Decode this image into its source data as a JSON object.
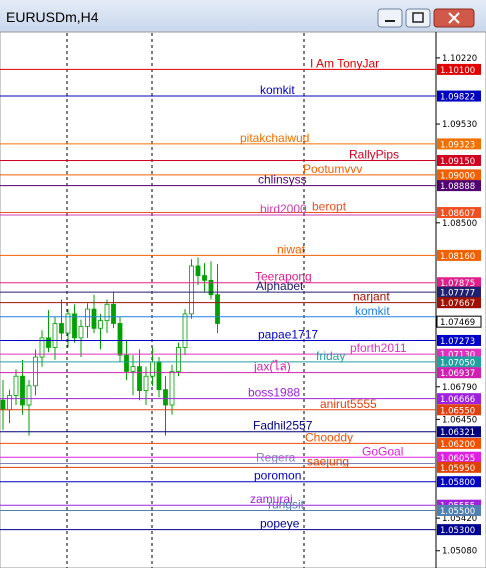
{
  "chart_data": {
    "type": "candlestick",
    "title": "EURUSDm,H4",
    "ylim": [
      1.049,
      1.1049
    ],
    "yticks": [
      {
        "value": 1.1022,
        "label": "1.10220"
      },
      {
        "value": 1.0953,
        "label": "1.09530"
      },
      {
        "value": 1.085,
        "label": "1.08500"
      },
      {
        "value": 1.0679,
        "label": "1.06790"
      },
      {
        "value": 1.0645,
        "label": "1.06450"
      },
      {
        "value": 1.0542,
        "label": "1.05420"
      },
      {
        "value": 1.0508,
        "label": "1.05080"
      }
    ],
    "candle_colors": {
      "up": "#ffffff",
      "down": "#00a000",
      "edge": "#00a000"
    },
    "open": [
      1.0665,
      1.0655,
      1.067,
      1.069,
      1.066,
      1.068,
      1.071,
      1.073,
      1.072,
      1.0745,
      1.0735,
      1.0755,
      1.073,
      1.0742,
      1.076,
      1.074,
      1.0748,
      1.0765,
      1.0745,
      1.0712,
      1.0695,
      1.07,
      1.0675,
      1.069,
      1.0705,
      1.0676,
      1.066,
      1.0695,
      1.072,
      1.0755,
      1.0805,
      1.0795,
      1.079,
      1.0775
    ],
    "high": [
      1.0686,
      1.0676,
      1.0697,
      1.0707,
      1.0686,
      1.0718,
      1.0738,
      1.0759,
      1.0752,
      1.077,
      1.076,
      1.0765,
      1.0749,
      1.0766,
      1.0775,
      1.0755,
      1.077,
      1.0778,
      1.0752,
      1.0728,
      1.0712,
      1.0718,
      1.07,
      1.072,
      1.071,
      1.069,
      1.0702,
      1.0725,
      1.076,
      1.0812,
      1.0814,
      1.0808,
      1.081,
      1.0807
    ],
    "low": [
      1.0634,
      1.0641,
      1.066,
      1.065,
      1.0628,
      1.067,
      1.07,
      1.0715,
      1.0707,
      1.0728,
      1.072,
      1.0725,
      1.071,
      1.073,
      1.0735,
      1.0718,
      1.0735,
      1.074,
      1.0705,
      1.0686,
      1.067,
      1.0665,
      1.066,
      1.068,
      1.0668,
      1.0628,
      1.065,
      1.069,
      1.0712,
      1.075,
      1.0785,
      1.0778,
      1.077,
      1.0735
    ],
    "close": [
      1.0655,
      1.067,
      1.069,
      1.066,
      1.068,
      1.071,
      1.073,
      1.072,
      1.0745,
      1.0735,
      1.0755,
      1.073,
      1.0742,
      1.076,
      1.074,
      1.0748,
      1.0765,
      1.0745,
      1.0712,
      1.0695,
      1.07,
      1.0675,
      1.069,
      1.0705,
      1.0676,
      1.066,
      1.0695,
      1.072,
      1.0755,
      1.0805,
      1.0795,
      1.079,
      1.0775,
      1.0745
    ],
    "bid": {
      "value": 1.07469,
      "label": "1.07469"
    },
    "levels": [
      {
        "name": "I Am TonyJar",
        "value": 1.101,
        "label": "1.10100",
        "color": "#e00000"
      },
      {
        "name": "komkit",
        "value": 1.09822,
        "label": "1.09822",
        "color": "#0000c0"
      },
      {
        "name": "pitakchaiwud",
        "value": 1.09323,
        "label": "1.09323",
        "color": "#f07000"
      },
      {
        "name": "RallyPips",
        "value": 1.0915,
        "label": "1.09150",
        "color": "#d00020"
      },
      {
        "name": "Pootumvvv",
        "value": 1.09,
        "label": "1.09000",
        "color": "#f06000"
      },
      {
        "name": "chlinsyss",
        "value": 1.08888,
        "label": "1.08888",
        "color": "#500070"
      },
      {
        "name": "beropt",
        "value": 1.08607,
        "label": "1.08607",
        "color": "#f05020"
      },
      {
        "name": "bird2000",
        "value": 1.08581,
        "color": "#d040b0"
      },
      {
        "name": "niwat",
        "value": 1.0816,
        "label": "1.08160",
        "color": "#f06000"
      },
      {
        "name": "Teerapong",
        "value": 1.07875,
        "label": "1.07875",
        "color": "#e0208a"
      },
      {
        "name": "Alphabet",
        "value": 1.07777,
        "label": "1.07777",
        "color": "#202070"
      },
      {
        "name": "narjant",
        "value": 1.07667,
        "label": "1.07667",
        "color": "#a01000"
      },
      {
        "name": "komkit",
        "value": 1.0752,
        "color": "#2080e0"
      },
      {
        "name": "papae1717",
        "value": 1.07273,
        "label": "1.07273",
        "color": "#0000c8"
      },
      {
        "name": "pforth2011",
        "value": 1.0713,
        "label": "1.07130",
        "color": "#e030c0"
      },
      {
        "name": "friday",
        "value": 1.0705,
        "label": "1.07050",
        "color": "#20a0a0"
      },
      {
        "name": "jax(ไล่)",
        "value": 1.06937,
        "label": "1.06937",
        "color": "#d020b0"
      },
      {
        "name": "boss1988",
        "value": 1.06666,
        "label": "1.06666",
        "color": "#a020e0"
      },
      {
        "name": "anirut5555",
        "value": 1.0655,
        "label": "1.06550",
        "color": "#e04010"
      },
      {
        "name": "Fadhil2557",
        "value": 1.06321,
        "label": "1.06321",
        "color": "#000080"
      },
      {
        "name": "Chooddy",
        "value": 1.062,
        "label": "1.06200",
        "color": "#f05000"
      },
      {
        "name": "GoGoal",
        "value": 1.06055,
        "label": "1.06055",
        "color": "#e020e0"
      },
      {
        "name": "Regera",
        "value": 1.0599,
        "color": "#8080c0"
      },
      {
        "name": "saejung",
        "value": 1.0595,
        "label": "1.05950",
        "color": "#e04000"
      },
      {
        "name": "poromon",
        "value": 1.058,
        "label": "1.05800",
        "color": "#0000c0"
      },
      {
        "name": "zamurai",
        "value": 1.05555,
        "label": "1.05555",
        "color": "#a020e0"
      },
      {
        "name": "rungsit",
        "value": 1.055,
        "label": "1.05500",
        "color": "#5080b0"
      },
      {
        "name": "popeye",
        "value": 1.053,
        "label": "1.05300",
        "color": "#000090"
      }
    ]
  }
}
